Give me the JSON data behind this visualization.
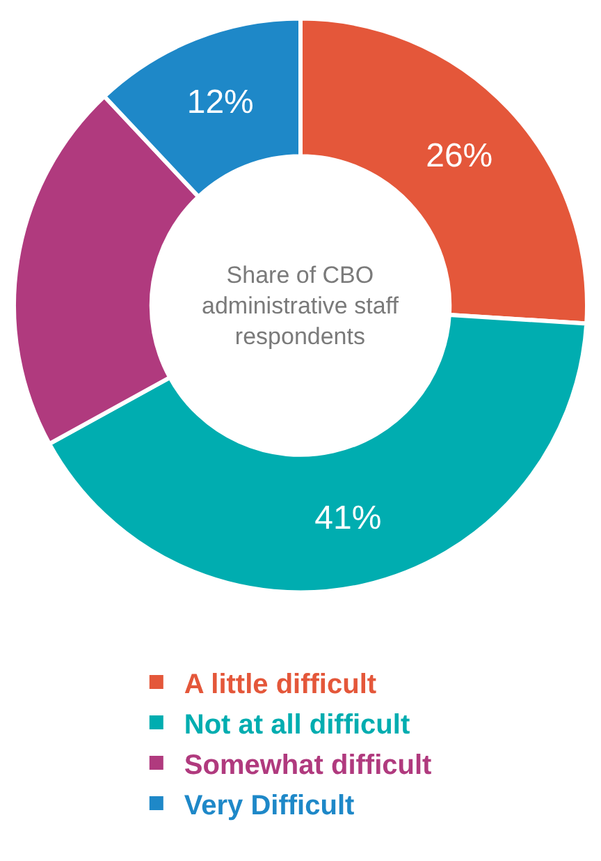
{
  "chart_data": {
    "type": "donut",
    "categories": [
      "A little difficult",
      "Not at all difficult",
      "Somewhat difficult",
      "Very Difficult"
    ],
    "values": [
      26,
      41,
      21,
      12
    ],
    "colors": [
      "#e4573a",
      "#00adb0",
      "#b03a7e",
      "#1e88c8"
    ],
    "value_labels": [
      "26%",
      "41%",
      null,
      "12%"
    ],
    "annotations": [
      "Share of CBO administrative staff respondents"
    ],
    "legend": "bottom"
  }
}
